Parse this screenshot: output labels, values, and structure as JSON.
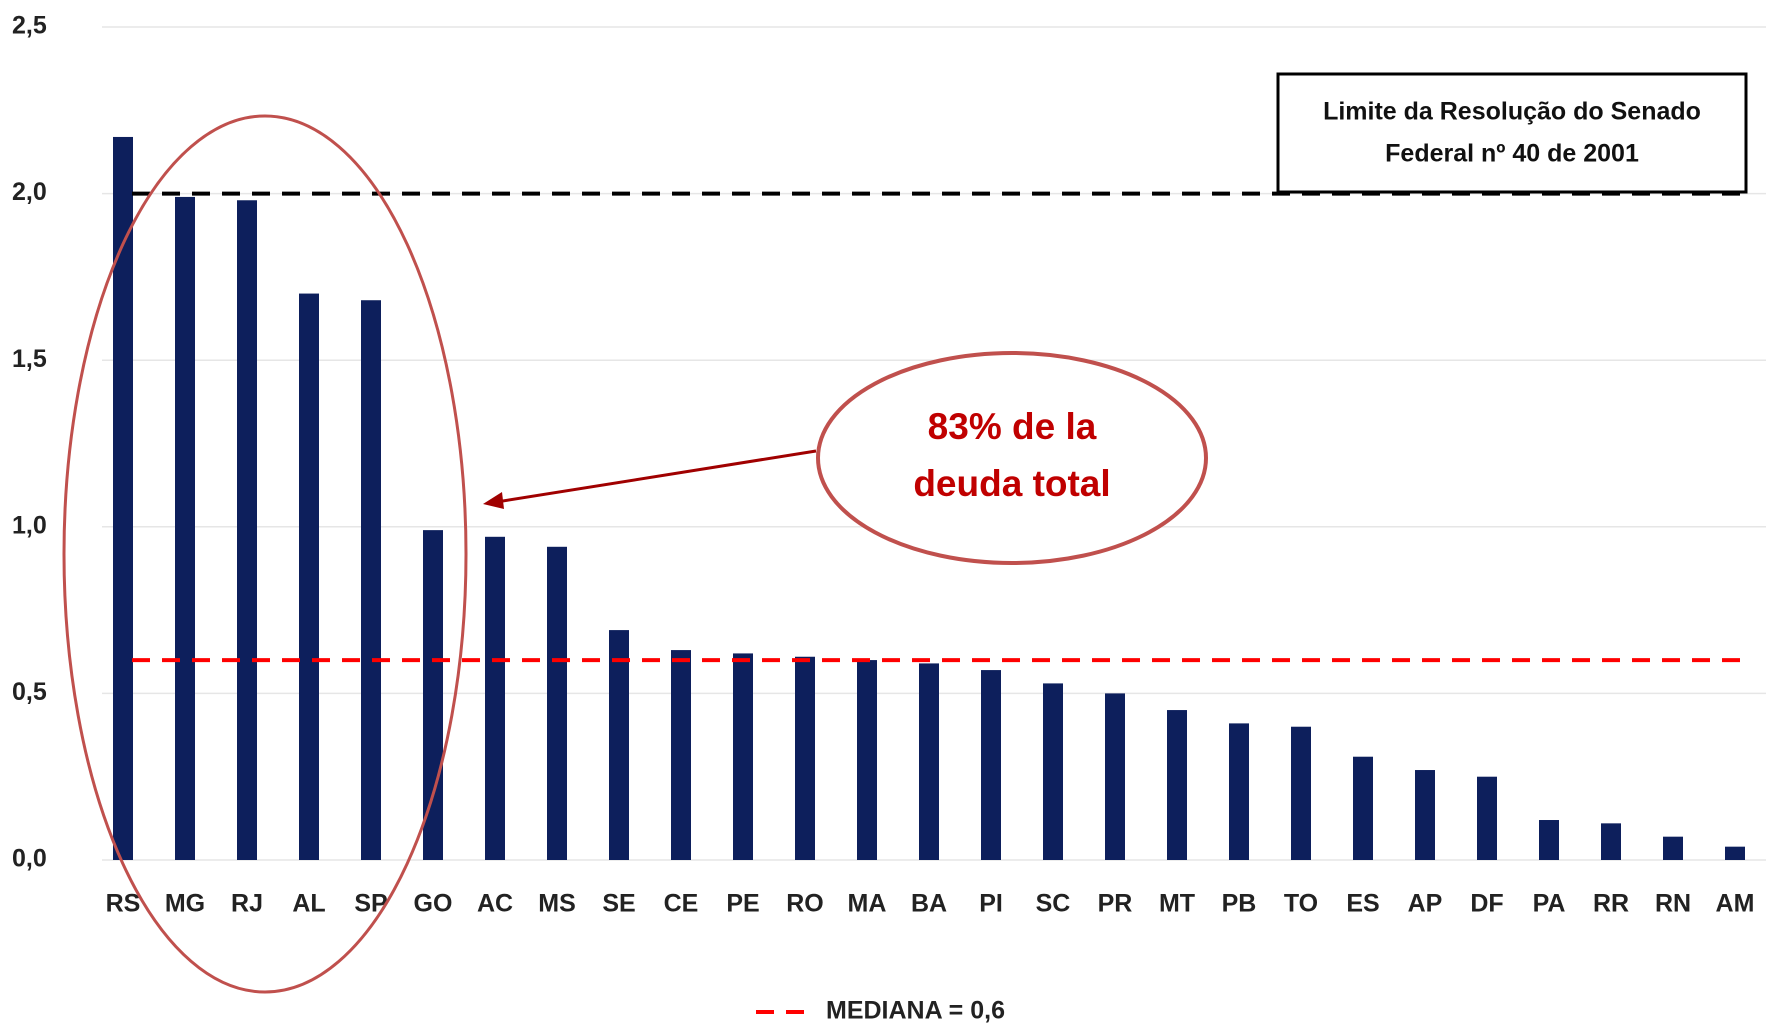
{
  "chart_data": {
    "type": "bar",
    "categories": [
      "RS",
      "MG",
      "RJ",
      "AL",
      "SP",
      "GO",
      "AC",
      "MS",
      "SE",
      "CE",
      "PE",
      "RO",
      "MA",
      "BA",
      "PI",
      "SC",
      "PR",
      "MT",
      "PB",
      "TO",
      "ES",
      "AP",
      "DF",
      "PA",
      "RR",
      "RN",
      "AM"
    ],
    "values": [
      2.17,
      1.99,
      1.98,
      1.7,
      1.68,
      0.99,
      0.97,
      0.94,
      0.69,
      0.63,
      0.62,
      0.61,
      0.6,
      0.59,
      0.57,
      0.53,
      0.5,
      0.45,
      0.41,
      0.4,
      0.31,
      0.27,
      0.25,
      0.12,
      0.11,
      0.07,
      0.04
    ],
    "color": "#0d1f5c",
    "ylim": [
      0,
      2.5
    ],
    "yticks": [
      {
        "value": 0,
        "label": "0,0"
      },
      {
        "value": 0.5,
        "label": "0,5"
      },
      {
        "value": 1,
        "label": "1,0"
      },
      {
        "value": 1.5,
        "label": "1,5"
      },
      {
        "value": 2,
        "label": "2,0"
      },
      {
        "value": 2.5,
        "label": "2,5"
      }
    ],
    "grid": true,
    "reference_lines": [
      {
        "value": 2,
        "color": "#000000"
      },
      {
        "value": 0.6,
        "color": "#ff0000",
        "name": "MEDIANA = 0,6"
      }
    ],
    "annotations": {
      "limit_box": [
        "Limite da Resolução do Senado",
        "Federal nº 40 de 2001"
      ],
      "highlight": [
        "83%  de la",
        "deuda total"
      ]
    }
  }
}
